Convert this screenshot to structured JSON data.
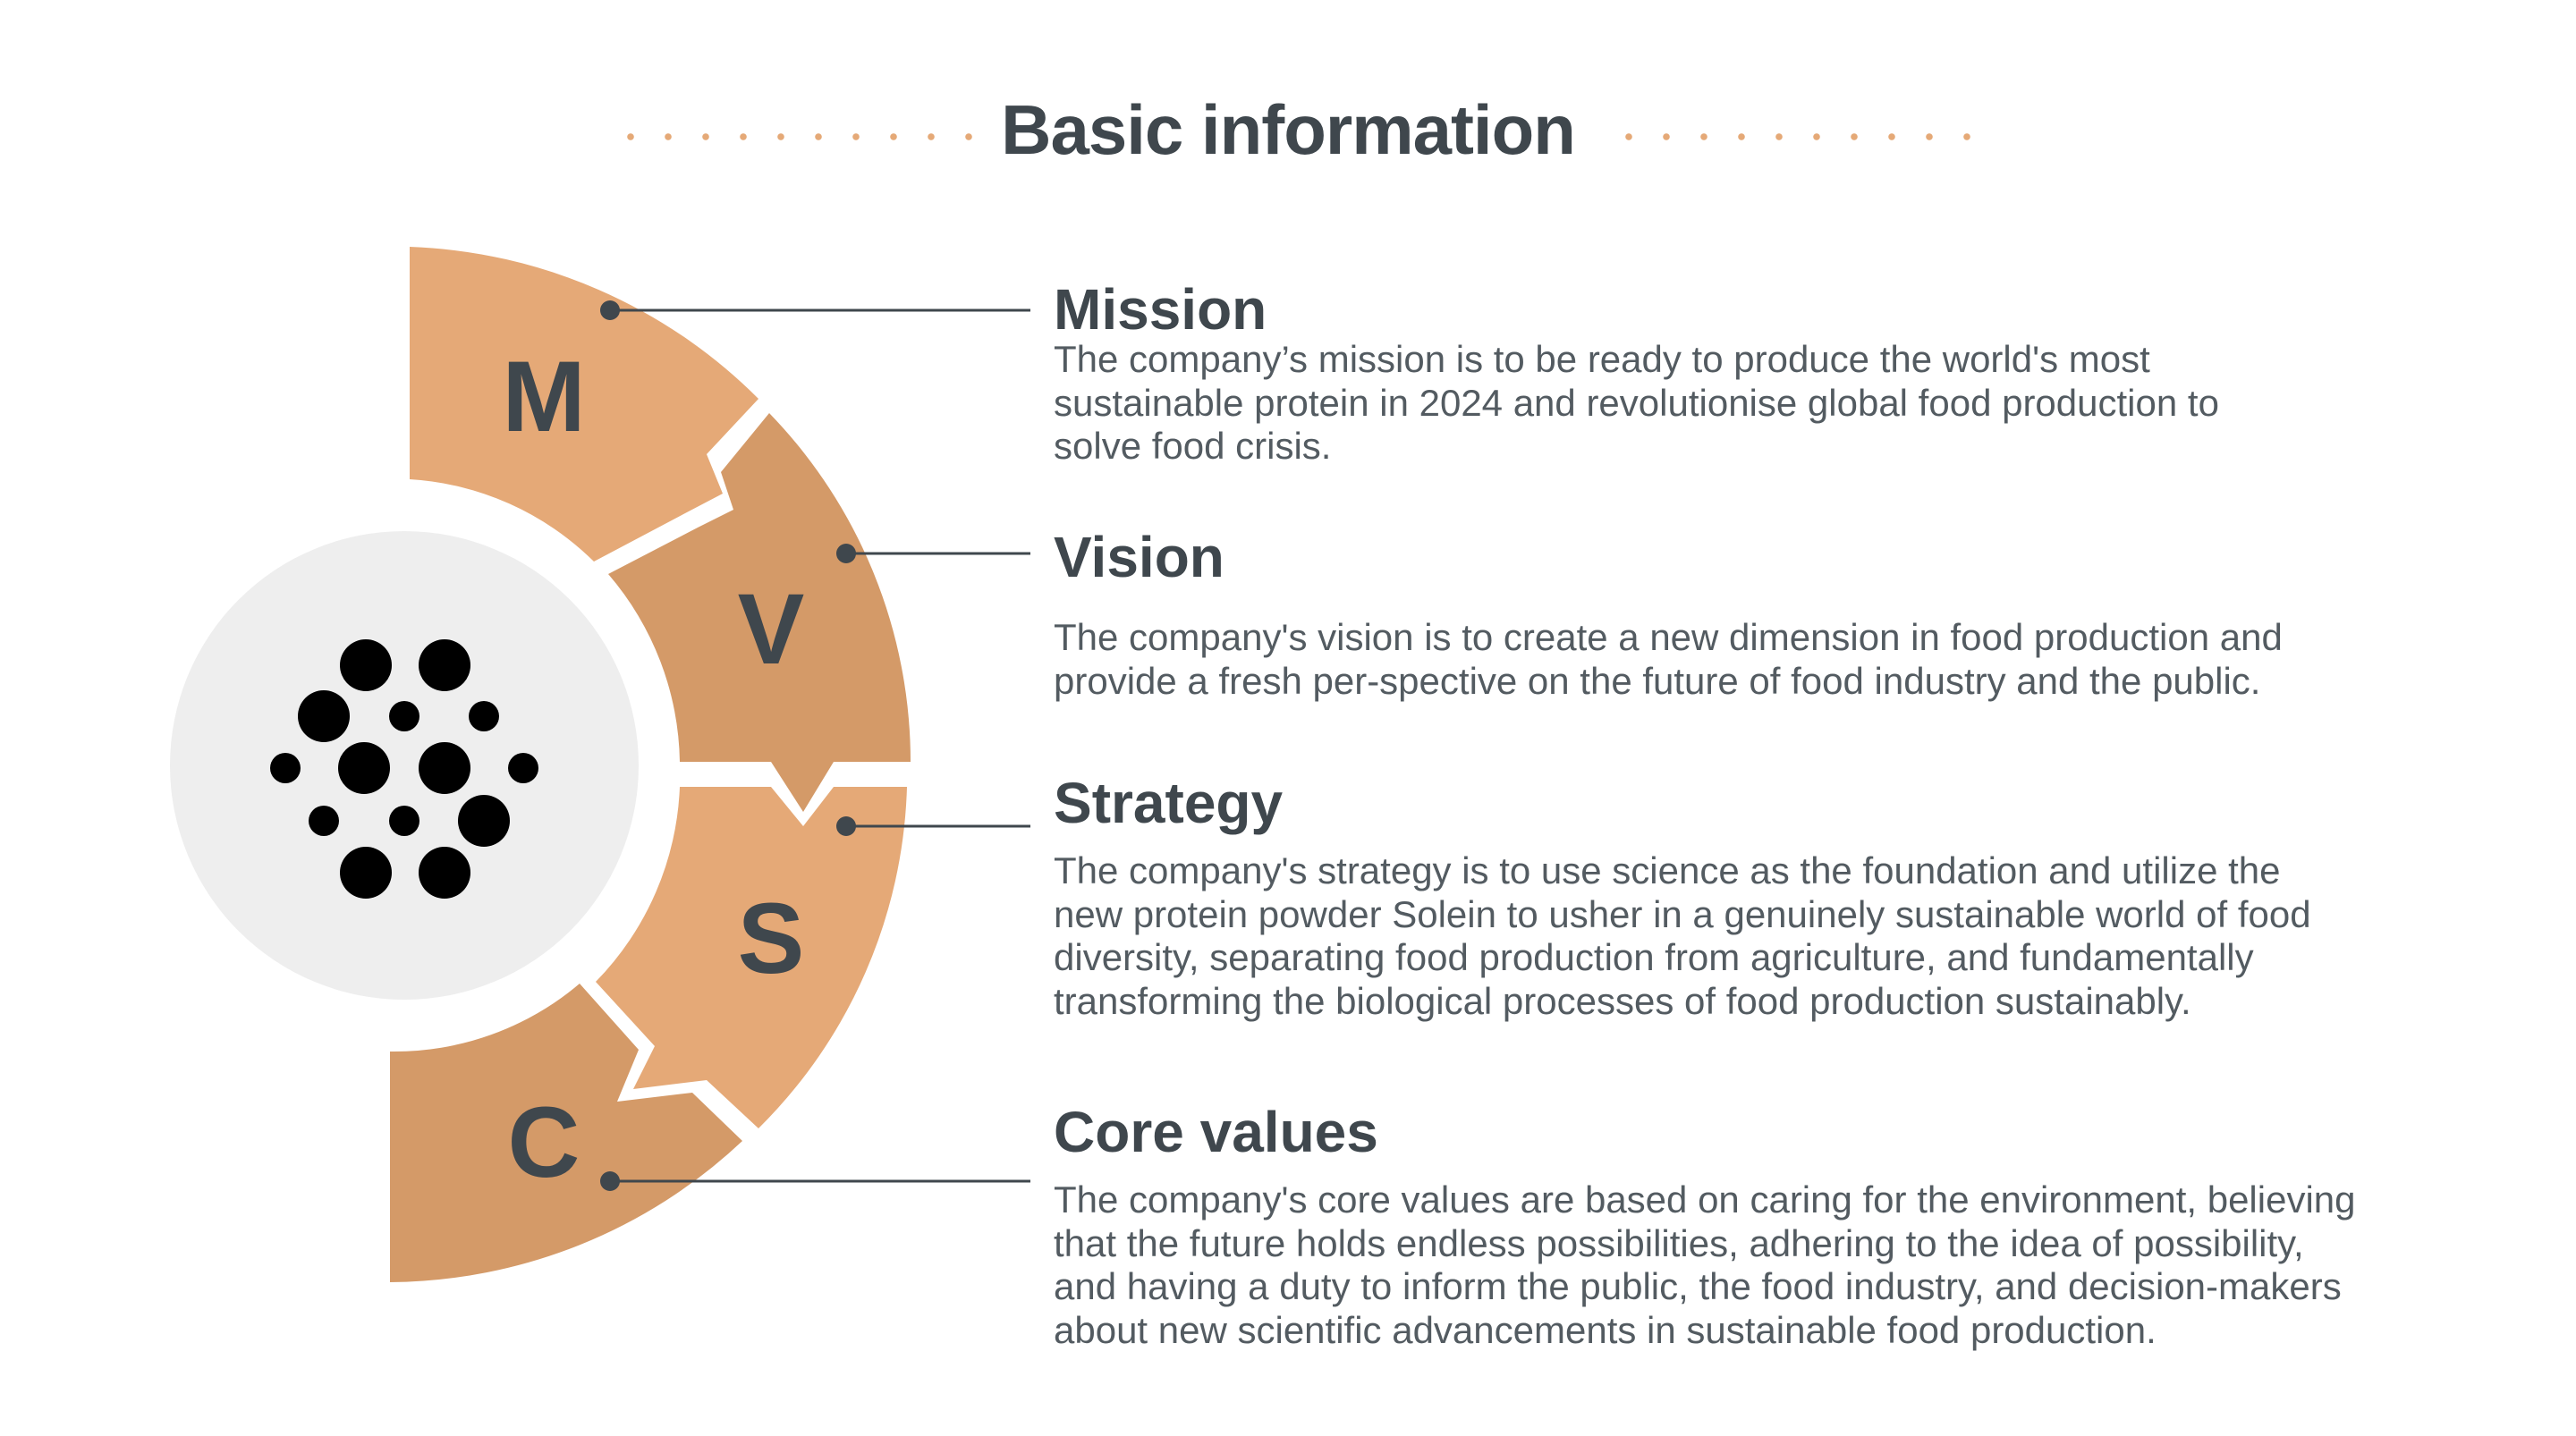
{
  "header": {
    "title": "Basic information"
  },
  "colors": {
    "accent_light": "#e5a977",
    "accent_dark": "#d49a68",
    "text_dark": "#3f474d",
    "text_body": "#535b61",
    "center_circle": "#eeeeee"
  },
  "diagram": {
    "center_icon": "dots-cluster-icon",
    "segments": [
      {
        "letter": "M"
      },
      {
        "letter": "V"
      },
      {
        "letter": "S"
      },
      {
        "letter": "C"
      }
    ]
  },
  "items": [
    {
      "title": "Mission",
      "text": "The company’s mission is to be ready to produce the world's most\nsustainable protein in 2024 and revolutionise global food production to\nsolve food crisis."
    },
    {
      "title": "Vision",
      "text": "The company's vision is to create a new dimension in food production and\nprovide a fresh per-spective on the future of food industry and the public."
    },
    {
      "title": "Strategy",
      "text": "The company's strategy is to use science as the foundation and utilize the\nnew protein powder Solein to usher in a genuinely sustainable world of food\ndiversity, separating food production from agriculture, and fundamentally\ntransforming the biological processes of food production sustainably."
    },
    {
      "title": "Core values",
      "text": "The company's core values are based on caring for the environment, believing\nthat the future holds endless possibilities, adhering to the idea of possibility,\nand having a duty to inform the public, the food industry, and decision-makers\nabout new scientific advancements in sustainable food production."
    }
  ]
}
